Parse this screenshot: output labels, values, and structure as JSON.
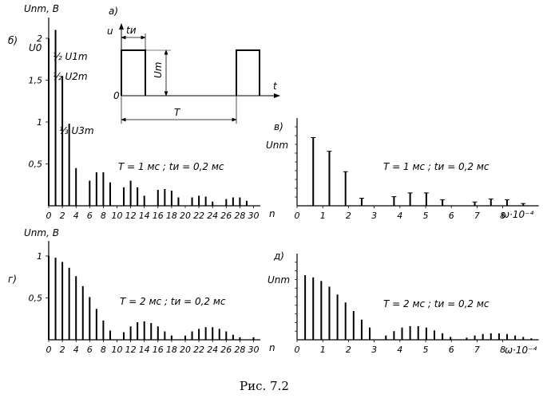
{
  "caption": "Рис. 7.2",
  "inset_a": {
    "label": "а)",
    "ylabel": "u",
    "xlabel": "t",
    "zero": "0",
    "pulse_width_label": "tи",
    "amplitude_label": "Um",
    "period_label": "T"
  },
  "chart_data": [
    {
      "id": "b",
      "panel_label": "б)",
      "type": "bar",
      "ylabel": "Unm, В",
      "xlabel": "n",
      "x_ticks": [
        0,
        2,
        4,
        6,
        8,
        10,
        12,
        14,
        16,
        18,
        20,
        22,
        24,
        26,
        28,
        30
      ],
      "y_ticks": [
        {
          "value": 0.5,
          "label": "0,5"
        },
        {
          "value": 1,
          "label": "1"
        },
        {
          "value": 1.5,
          "label": "1,5"
        },
        {
          "value": 2,
          "label": "2"
        }
      ],
      "ylim": [
        0,
        2.2
      ],
      "xlim": [
        0,
        31
      ],
      "params": "T = 1 мс   ;  tи = 0,2 мс",
      "annotations": [
        {
          "text": "U0",
          "at_n": 0
        },
        {
          "text": "½ U1m",
          "at_n": 1
        },
        {
          "text": "½ U2m",
          "at_n": 2
        },
        {
          "text": "⅓ U3m",
          "at_n": 3
        }
      ],
      "x": [
        0,
        1,
        2,
        3,
        4,
        5,
        6,
        7,
        8,
        9,
        10,
        11,
        12,
        13,
        14,
        15,
        16,
        17,
        18,
        19,
        20,
        21,
        22,
        23,
        24,
        25,
        26,
        27,
        28,
        29,
        30
      ],
      "values": [
        2.0,
        2.1,
        1.55,
        0.98,
        0.45,
        0.0,
        0.3,
        0.4,
        0.4,
        0.28,
        0.0,
        0.22,
        0.3,
        0.22,
        0.12,
        0.0,
        0.19,
        0.2,
        0.18,
        0.1,
        0.0,
        0.1,
        0.12,
        0.11,
        0.05,
        0.0,
        0.08,
        0.1,
        0.1,
        0.06,
        0.0
      ]
    },
    {
      "id": "v",
      "panel_label": "в)",
      "type": "bar",
      "ylabel": "Unm",
      "xlabel": "ω·10⁻⁴",
      "x_ticks": [
        0,
        1,
        2,
        3,
        4,
        5,
        6,
        7,
        8
      ],
      "xlim": [
        0,
        9.4
      ],
      "ylim": [
        0,
        1
      ],
      "params": "T = 1 мс   ;  tи = 0,2 мс",
      "x": [
        0.628,
        1.257,
        1.885,
        2.513,
        3.142,
        3.77,
        4.398,
        5.027,
        5.655,
        6.283,
        6.912,
        7.54,
        8.168,
        8.796
      ],
      "values": [
        0.9,
        0.72,
        0.45,
        0.1,
        0.0,
        0.12,
        0.17,
        0.17,
        0.08,
        0.0,
        0.05,
        0.09,
        0.08,
        0.03
      ]
    },
    {
      "id": "g",
      "panel_label": "г)",
      "type": "bar",
      "ylabel": "Unm, В",
      "xlabel": "n",
      "x_ticks": [
        0,
        2,
        4,
        6,
        8,
        10,
        12,
        14,
        16,
        18,
        20,
        22,
        24,
        26,
        28,
        30
      ],
      "y_ticks": [
        {
          "value": 0.5,
          "label": "0,5"
        },
        {
          "value": 1,
          "label": "1"
        }
      ],
      "ylim": [
        0,
        1.1
      ],
      "xlim": [
        0,
        31
      ],
      "params": "T = 2 мс   ;  tи = 0,2 мс",
      "x": [
        0,
        1,
        2,
        3,
        4,
        5,
        6,
        7,
        8,
        9,
        10,
        11,
        12,
        13,
        14,
        15,
        16,
        17,
        18,
        19,
        20,
        21,
        22,
        23,
        24,
        25,
        26,
        27,
        28,
        29,
        30
      ],
      "values": [
        1.0,
        0.98,
        0.93,
        0.86,
        0.76,
        0.64,
        0.51,
        0.37,
        0.23,
        0.11,
        0.0,
        0.09,
        0.16,
        0.21,
        0.22,
        0.2,
        0.16,
        0.1,
        0.05,
        0.0,
        0.05,
        0.1,
        0.13,
        0.15,
        0.15,
        0.13,
        0.1,
        0.06,
        0.03,
        0.0,
        0.03
      ]
    },
    {
      "id": "d",
      "panel_label": "д)",
      "type": "bar",
      "ylabel": "Unm",
      "xlabel": "ω·10⁻⁴",
      "x_ticks": [
        0,
        1,
        2,
        3,
        4,
        5,
        6,
        7,
        8
      ],
      "xlim": [
        0,
        9.4
      ],
      "ylim": [
        0,
        1
      ],
      "params": "T = 2 мс   ;  tи = 0,2 мс",
      "x": [
        0.314,
        0.628,
        0.942,
        1.257,
        1.571,
        1.885,
        2.199,
        2.513,
        2.827,
        3.142,
        3.456,
        3.77,
        4.084,
        4.398,
        4.712,
        5.027,
        5.341,
        5.655,
        5.969,
        6.283,
        6.597,
        6.912,
        7.226,
        7.54,
        7.854,
        8.168,
        8.482,
        8.796,
        9.111
      ],
      "values": [
        0.9,
        0.87,
        0.82,
        0.74,
        0.63,
        0.52,
        0.4,
        0.28,
        0.17,
        0.0,
        0.06,
        0.12,
        0.17,
        0.19,
        0.19,
        0.17,
        0.13,
        0.09,
        0.04,
        0.0,
        0.03,
        0.06,
        0.08,
        0.09,
        0.09,
        0.08,
        0.06,
        0.04,
        0.02
      ]
    }
  ]
}
